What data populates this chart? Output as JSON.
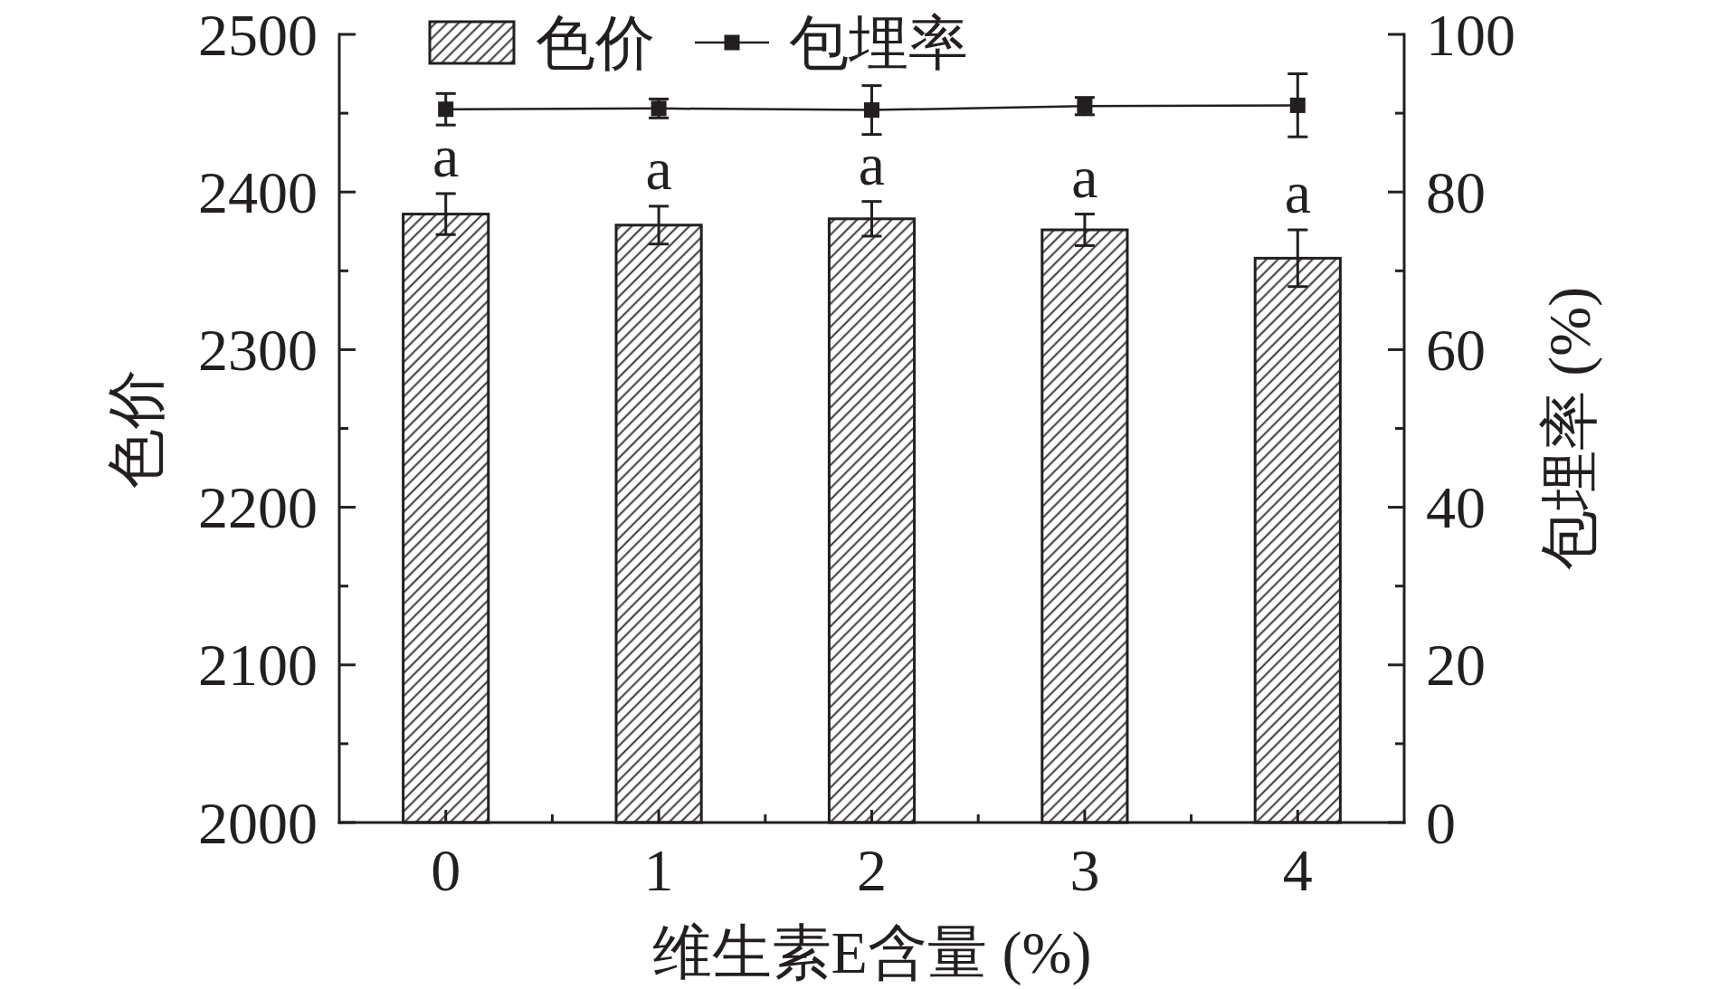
{
  "chart_data": {
    "type": "bar",
    "x": [
      0,
      1,
      2,
      3,
      4
    ],
    "xlim": [
      -0.5,
      4.5
    ],
    "xticks": [
      0,
      {
        "value": 0.5,
        "label": null
      },
      1,
      {
        "value": 1.5,
        "label": null
      },
      2,
      {
        "value": 2.5,
        "label": null
      },
      3,
      {
        "value": 3.5,
        "label": null
      },
      4
    ],
    "ylim": [
      2000,
      2500
    ],
    "yticks": [
      2000,
      {
        "value": 2050,
        "label": null
      },
      2100,
      {
        "value": 2150,
        "label": null
      },
      2200,
      {
        "value": 2250,
        "label": null
      },
      2300,
      {
        "value": 2350,
        "label": null
      },
      2400,
      {
        "value": 2450,
        "label": null
      },
      2500
    ],
    "y2lim": [
      0,
      100
    ],
    "y2ticks": [
      0,
      {
        "value": 10,
        "label": null
      },
      20,
      {
        "value": 30,
        "label": null
      },
      40,
      {
        "value": 50,
        "label": null
      },
      60,
      {
        "value": 70,
        "label": null
      },
      80,
      {
        "value": 90,
        "label": null
      },
      100
    ],
    "xlabel": "维生素E含量 (%)",
    "ylabel": "色价",
    "y2label": "包埋率 (%)",
    "legend": "top left",
    "marker": "square",
    "line_style": "solid",
    "series": [
      {
        "name": "色价",
        "color": "#231f20",
        "values": [
          2386,
          2379,
          2383,
          2376,
          2358
        ],
        "errors": [
          13,
          12,
          11,
          10,
          18
        ]
      },
      {
        "name": "包埋率",
        "type": "line",
        "axis": "y2",
        "color": "#231f20",
        "values": [
          90.5,
          90.6,
          90.4,
          90.9,
          91.0
        ],
        "errors": [
          2,
          1.2,
          3.1,
          1.1,
          4
        ]
      }
    ],
    "annotations": [
      "a",
      "a",
      "a",
      "a",
      "a"
    ]
  }
}
